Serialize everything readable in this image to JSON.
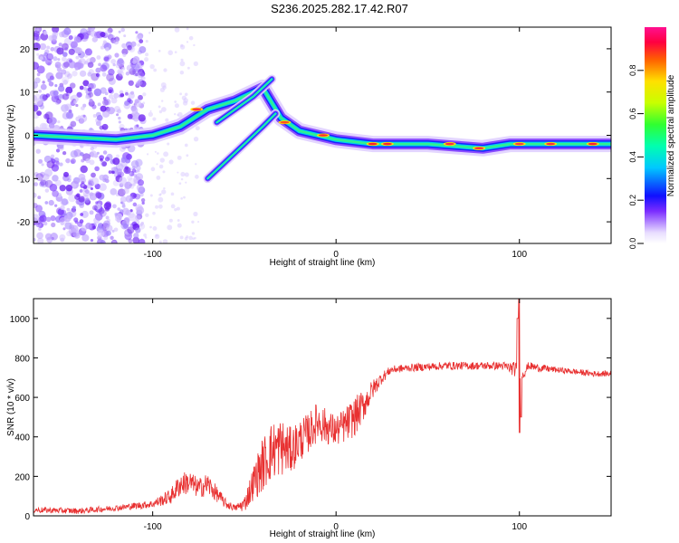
{
  "title": "S236.2025.282.17.42.R07",
  "colors": {
    "line": "#e83030",
    "axis": "#000000"
  },
  "chart_data": [
    {
      "type": "heatmap",
      "xlabel": "Height of straight line (km)",
      "ylabel": "Frequency (Hz)",
      "xlim": [
        -165,
        150
      ],
      "ylim": [
        -25,
        25
      ],
      "xticks": [
        -100,
        0,
        100
      ],
      "xtick_labels": [
        "-100",
        "0",
        "100"
      ],
      "yticks": [
        -20,
        -10,
        0,
        10,
        20
      ],
      "ytick_labels": [
        "-20",
        "-10",
        "0",
        "10",
        "20"
      ],
      "colorbar": {
        "label": "Normalized spectral amplitude",
        "range": [
          0,
          1
        ],
        "ticks": [
          0.0,
          0.2,
          0.4,
          0.6,
          0.8
        ],
        "tick_labels": [
          "0.0",
          "0.2",
          "0.4",
          "0.6",
          "0.8"
        ]
      },
      "ridges": [
        {
          "name": "main",
          "points": [
            [
              -165,
              0
            ],
            [
              -120,
              -1
            ],
            [
              -100,
              0
            ],
            [
              -85,
              2
            ],
            [
              -70,
              6
            ],
            [
              -55,
              8
            ],
            [
              -40,
              11
            ],
            [
              -30,
              4
            ],
            [
              -20,
              1
            ],
            [
              -10,
              0
            ],
            [
              0,
              -1
            ],
            [
              20,
              -2
            ],
            [
              50,
              -2
            ],
            [
              80,
              -3
            ],
            [
              95,
              -2
            ],
            [
              110,
              -2
            ],
            [
              150,
              -2
            ]
          ]
        },
        {
          "name": "lower-branch",
          "points": [
            [
              -70,
              -10
            ],
            [
              -60,
              -6
            ],
            [
              -50,
              -2
            ],
            [
              -40,
              2
            ],
            [
              -33,
              5
            ]
          ]
        },
        {
          "name": "upper-branch",
          "points": [
            [
              -65,
              3
            ],
            [
              -55,
              6
            ],
            [
              -45,
              9
            ],
            [
              -35,
              13
            ]
          ]
        }
      ]
    },
    {
      "type": "line",
      "xlabel": "Height of straight line (km)",
      "ylabel": "SNR (10 * v/v)",
      "xlim": [
        -165,
        150
      ],
      "ylim": [
        0,
        1100
      ],
      "xticks": [
        -100,
        0,
        100
      ],
      "xtick_labels": [
        "-100",
        "0",
        "100"
      ],
      "yticks": [
        0,
        200,
        400,
        600,
        800,
        1000
      ],
      "ytick_labels": [
        "0",
        "200",
        "400",
        "600",
        "800",
        "1000"
      ],
      "series": [
        {
          "name": "SNR",
          "x": [
            -165,
            -140,
            -120,
            -100,
            -90,
            -85,
            -80,
            -75,
            -70,
            -65,
            -60,
            -55,
            -50,
            -45,
            -40,
            -35,
            -30,
            -25,
            -20,
            -15,
            -10,
            -5,
            0,
            5,
            10,
            15,
            20,
            25,
            30,
            40,
            50,
            60,
            70,
            80,
            90,
            95,
            98,
            100,
            102,
            105,
            110,
            120,
            130,
            140,
            150
          ],
          "y": [
            30,
            25,
            40,
            60,
            100,
            160,
            170,
            140,
            160,
            110,
            60,
            40,
            60,
            170,
            260,
            330,
            350,
            330,
            380,
            420,
            480,
            450,
            430,
            460,
            500,
            560,
            640,
            700,
            740,
            750,
            755,
            760,
            760,
            760,
            760,
            750,
            740,
            730,
            720,
            760,
            750,
            740,
            730,
            720,
            720
          ],
          "spread": [
            15,
            15,
            15,
            20,
            40,
            60,
            60,
            50,
            60,
            40,
            25,
            15,
            40,
            90,
            140,
            150,
            150,
            120,
            110,
            100,
            100,
            90,
            80,
            90,
            100,
            80,
            50,
            30,
            20,
            20,
            20,
            20,
            20,
            20,
            20,
            30,
            40,
            40,
            30,
            20,
            20,
            15,
            15,
            15,
            15
          ]
        }
      ],
      "spike": {
        "x": 100,
        "high": 1100,
        "low": 420
      }
    }
  ]
}
